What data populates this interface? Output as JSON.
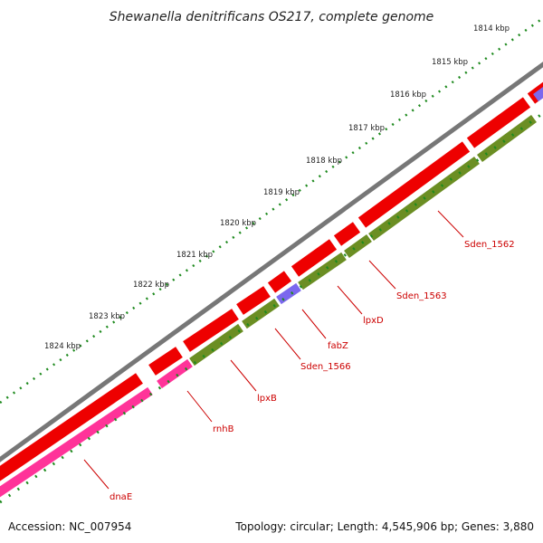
{
  "title": "Shewanella denitrificans OS217, complete genome",
  "footer": {
    "accession": "Accession: NC_007954",
    "topology": "Topology: circular; Length: 4,545,906 bp; Genes: 3,880"
  },
  "colors": {
    "backbone": "#777777",
    "forward_cds": "#ee0000",
    "reverse_cds": "#6b8e23",
    "rna_gene": "#ff3399",
    "other_feature": "#7b68ee",
    "tick": "#1e8a1e",
    "gene_label": "#cc0000"
  },
  "scale_labels": [
    "1814 kbp",
    "1815 kbp",
    "1816 kbp",
    "1817 kbp",
    "1818 kbp",
    "1819 kbp",
    "1820 kbp",
    "1821 kbp",
    "1822 kbp",
    "1823 kbp",
    "1824 kbp"
  ],
  "gene_labels": [
    "Sden_1562",
    "Sden_1563",
    "lpxD",
    "fabZ",
    "Sden_1566",
    "lpxB",
    "rnhB",
    "dnaE"
  ]
}
